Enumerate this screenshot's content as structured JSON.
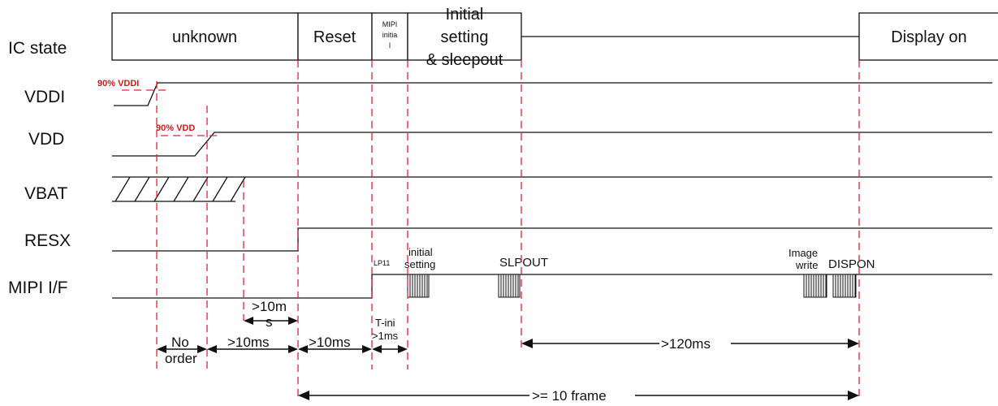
{
  "signals": {
    "ic_state": "IC state",
    "vddi": "VDDI",
    "vdd": "VDD",
    "vbat": "VBAT",
    "resx": "RESX",
    "mipi": "MIPI I/F"
  },
  "states": {
    "unknown": "unknown",
    "reset": "Reset",
    "mipi_init_1": "MIPI",
    "mipi_init_2": "initia",
    "mipi_init_3": "l",
    "initial_1": "Initial",
    "initial_2": "setting",
    "initial_3": "& sleepout",
    "display_on": "Display on"
  },
  "thresholds": {
    "vddi": "90% VDDI",
    "vdd": "90% VDD"
  },
  "events": {
    "lp11": "LP11",
    "initial_1": "initial",
    "initial_2": "setting",
    "slpout": "SLPOUT",
    "image_1": "Image",
    "image_2": "write",
    "dispon": "DISPON"
  },
  "timing": {
    "no_order_1": "No",
    "no_order_2": "order",
    "t10ms_a": ">10ms",
    "t10ms_b": ">10ms",
    "t10m_1": ">10m",
    "t10m_2": "s",
    "tini_1": "T-ini",
    "tini_2": ">1ms",
    "t120": ">120ms",
    "frames": ">= 10 frame"
  }
}
